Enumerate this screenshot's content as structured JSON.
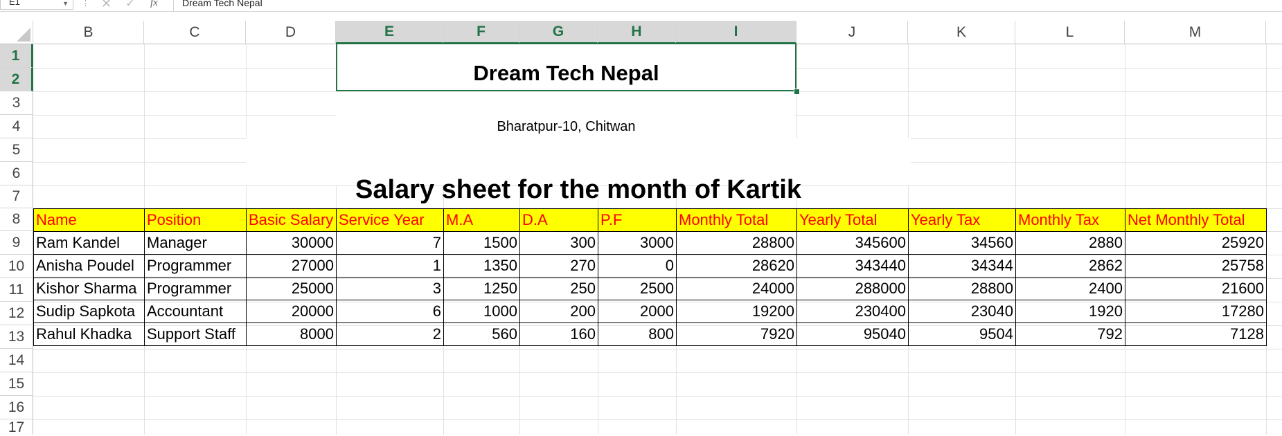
{
  "formula_bar": {
    "name_box": "E1",
    "cancel_icon": "cancel-icon",
    "enter_icon": "enter-icon",
    "fx_label": "fx",
    "content": "Dream Tech Nepal"
  },
  "columns": [
    "B",
    "C",
    "D",
    "E",
    "F",
    "G",
    "H",
    "I",
    "J",
    "K",
    "L",
    "M"
  ],
  "selected_columns": [
    "E",
    "F",
    "G",
    "H",
    "I"
  ],
  "rows": [
    "1",
    "2",
    "3",
    "4",
    "5",
    "6",
    "7",
    "8",
    "9",
    "10",
    "11",
    "12",
    "13",
    "14",
    "15",
    "16",
    "17"
  ],
  "selected_rows": [
    "1",
    "2"
  ],
  "cells": {
    "company_name": "Dream Tech Nepal",
    "address": "Bharatpur-10, Chitwan",
    "sheet_title": "Salary sheet for the month of Kartik"
  },
  "table": {
    "headers": [
      "Name",
      "Position",
      "Basic Salary",
      "Service Year",
      "M.A",
      "D.A",
      "P.F",
      "Monthly Total",
      "Yearly Total",
      "Yearly Tax",
      "Monthly Tax",
      "Net Monthly Total"
    ],
    "rows": [
      [
        "Ram Kandel",
        "Manager",
        "30000",
        "7",
        "1500",
        "300",
        "3000",
        "28800",
        "345600",
        "34560",
        "2880",
        "25920"
      ],
      [
        "Anisha Poudel",
        "Programmer",
        "27000",
        "1",
        "1350",
        "270",
        "0",
        "28620",
        "343440",
        "34344",
        "2862",
        "25758"
      ],
      [
        "Kishor Sharma",
        "Programmer",
        "25000",
        "3",
        "1250",
        "250",
        "2500",
        "24000",
        "288000",
        "28800",
        "2400",
        "21600"
      ],
      [
        "Sudip Sapkota",
        "Accountant",
        "20000",
        "6",
        "1000",
        "200",
        "2000",
        "19200",
        "230400",
        "23040",
        "1920",
        "17280"
      ],
      [
        "Rahul Khadka",
        "Support Staff",
        "8000",
        "2",
        "560",
        "160",
        "800",
        "7920",
        "95040",
        "9504",
        "792",
        "7128"
      ]
    ]
  },
  "colors": {
    "header_fill": "#ffff00",
    "header_text": "#ff0000",
    "selection_green": "#217346"
  }
}
